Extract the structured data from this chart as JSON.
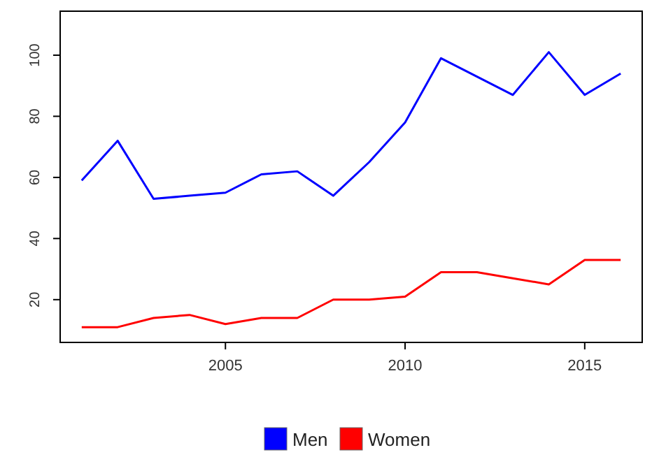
{
  "chart_data": {
    "type": "line",
    "x": [
      2001,
      2002,
      2003,
      2004,
      2005,
      2006,
      2007,
      2008,
      2009,
      2010,
      2011,
      2012,
      2013,
      2014,
      2015,
      2016
    ],
    "series": [
      {
        "name": "Men",
        "color": "#0000ff",
        "values": [
          59,
          72,
          53,
          54,
          55,
          61,
          62,
          54,
          65,
          78,
          99,
          93,
          87,
          101,
          87,
          94
        ]
      },
      {
        "name": "Women",
        "color": "#ff0000",
        "values": [
          11,
          11,
          14,
          15,
          12,
          14,
          14,
          20,
          20,
          21,
          29,
          29,
          27,
          25,
          33,
          33
        ]
      }
    ],
    "xlim": [
      2000.4,
      2016.6
    ],
    "xticks": [
      2005,
      2010,
      2015
    ],
    "ylim": [
      6,
      114.4
    ],
    "yticks": [
      20,
      40,
      60,
      80,
      100
    ],
    "grid": false,
    "legend": "bottom"
  }
}
